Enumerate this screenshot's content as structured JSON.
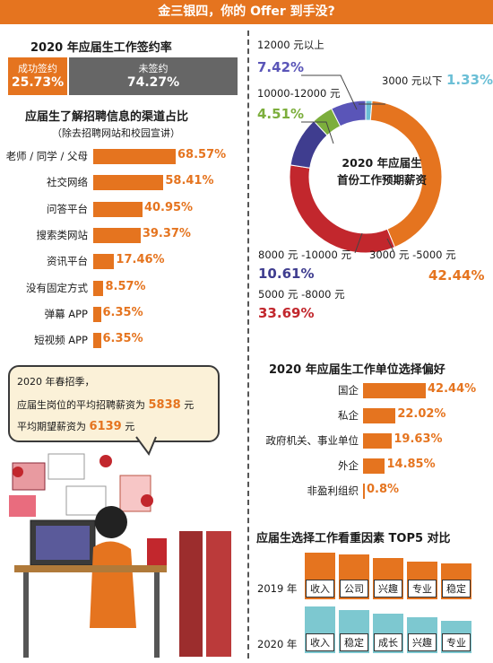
{
  "header": {
    "title": "金三银四，你的 Offer 到手没?"
  },
  "sign_rate": {
    "title": "2020 年应届生工作签约率",
    "signed_label": "成功签约",
    "signed_value": "25.73%",
    "unsigned_label": "未签约",
    "unsigned_value": "74.27%",
    "colors": {
      "signed": "#e5741f",
      "unsigned": "#666666"
    }
  },
  "channels": {
    "title": "应届生了解招聘信息的渠道占比",
    "subtitle": "（除去招聘网站和校园宣讲）",
    "items": [
      {
        "label": "老师 / 同学 / 父母",
        "value": 68.57,
        "text": "68.57%"
      },
      {
        "label": "社交网络",
        "value": 58.41,
        "text": "58.41%"
      },
      {
        "label": "问答平台",
        "value": 40.95,
        "text": "40.95%"
      },
      {
        "label": "搜索类网站",
        "value": 39.37,
        "text": "39.37%"
      },
      {
        "label": "资讯平台",
        "value": 17.46,
        "text": "17.46%"
      },
      {
        "label": "没有固定方式",
        "value": 8.57,
        "text": "8.57%"
      },
      {
        "label": "弹幕 APP",
        "value": 6.35,
        "text": "6.35%"
      },
      {
        "label": "短视频 APP",
        "value": 6.35,
        "text": "6.35%"
      }
    ]
  },
  "callout": {
    "line1": "2020 年春招季，",
    "line2_pre": "应届生岗位的平均招聘薪资为",
    "line2_num": "5838",
    "line2_unit": "元",
    "line3_pre": "平均期望薪资为",
    "line3_num": "6139",
    "line3_unit": "元"
  },
  "salary": {
    "center_line1": "2020 年应届生",
    "center_line2": "首份工作预期薪资",
    "slices": [
      {
        "label": "3000 元以下",
        "value": 1.33,
        "text": "1.33%",
        "color": "#6bbfd6"
      },
      {
        "label": "3000 元 -5000 元",
        "value": 42.44,
        "text": "42.44%",
        "color": "#e5741f"
      },
      {
        "label": "5000 元 -8000 元",
        "value": 33.69,
        "text": "33.69%",
        "color": "#c2272d"
      },
      {
        "label": "8000 元 -10000 元",
        "value": 10.61,
        "text": "10.61%",
        "color": "#3f3d8f"
      },
      {
        "label": "10000-12000 元",
        "value": 4.51,
        "text": "4.51%",
        "color": "#7cae3c"
      },
      {
        "label": "12000 元以上",
        "value": 7.42,
        "text": "7.42%",
        "color": "#5a55b8"
      }
    ]
  },
  "employer": {
    "title": "2020 年应届生工作单位选择偏好",
    "items": [
      {
        "label": "国企",
        "value": 42.44,
        "text": "42.44%"
      },
      {
        "label": "私企",
        "value": 22.02,
        "text": "22.02%"
      },
      {
        "label": "政府机关、事业单位",
        "value": 19.63,
        "text": "19.63%"
      },
      {
        "label": "外企",
        "value": 14.85,
        "text": "14.85%"
      },
      {
        "label": "非盈利组织",
        "value": 0.8,
        "text": "0.8%"
      }
    ]
  },
  "factors": {
    "title": "应届生选择工作看重因素 TOP5 对比",
    "row2019": {
      "year": "2019 年",
      "items": [
        "收入",
        "公司",
        "兴趣",
        "专业",
        "稳定"
      ],
      "color": "#e5741f"
    },
    "row2020": {
      "year": "2020 年",
      "items": [
        "收入",
        "稳定",
        "成长",
        "兴趣",
        "专业"
      ],
      "color": "#7dc8d0"
    }
  }
}
